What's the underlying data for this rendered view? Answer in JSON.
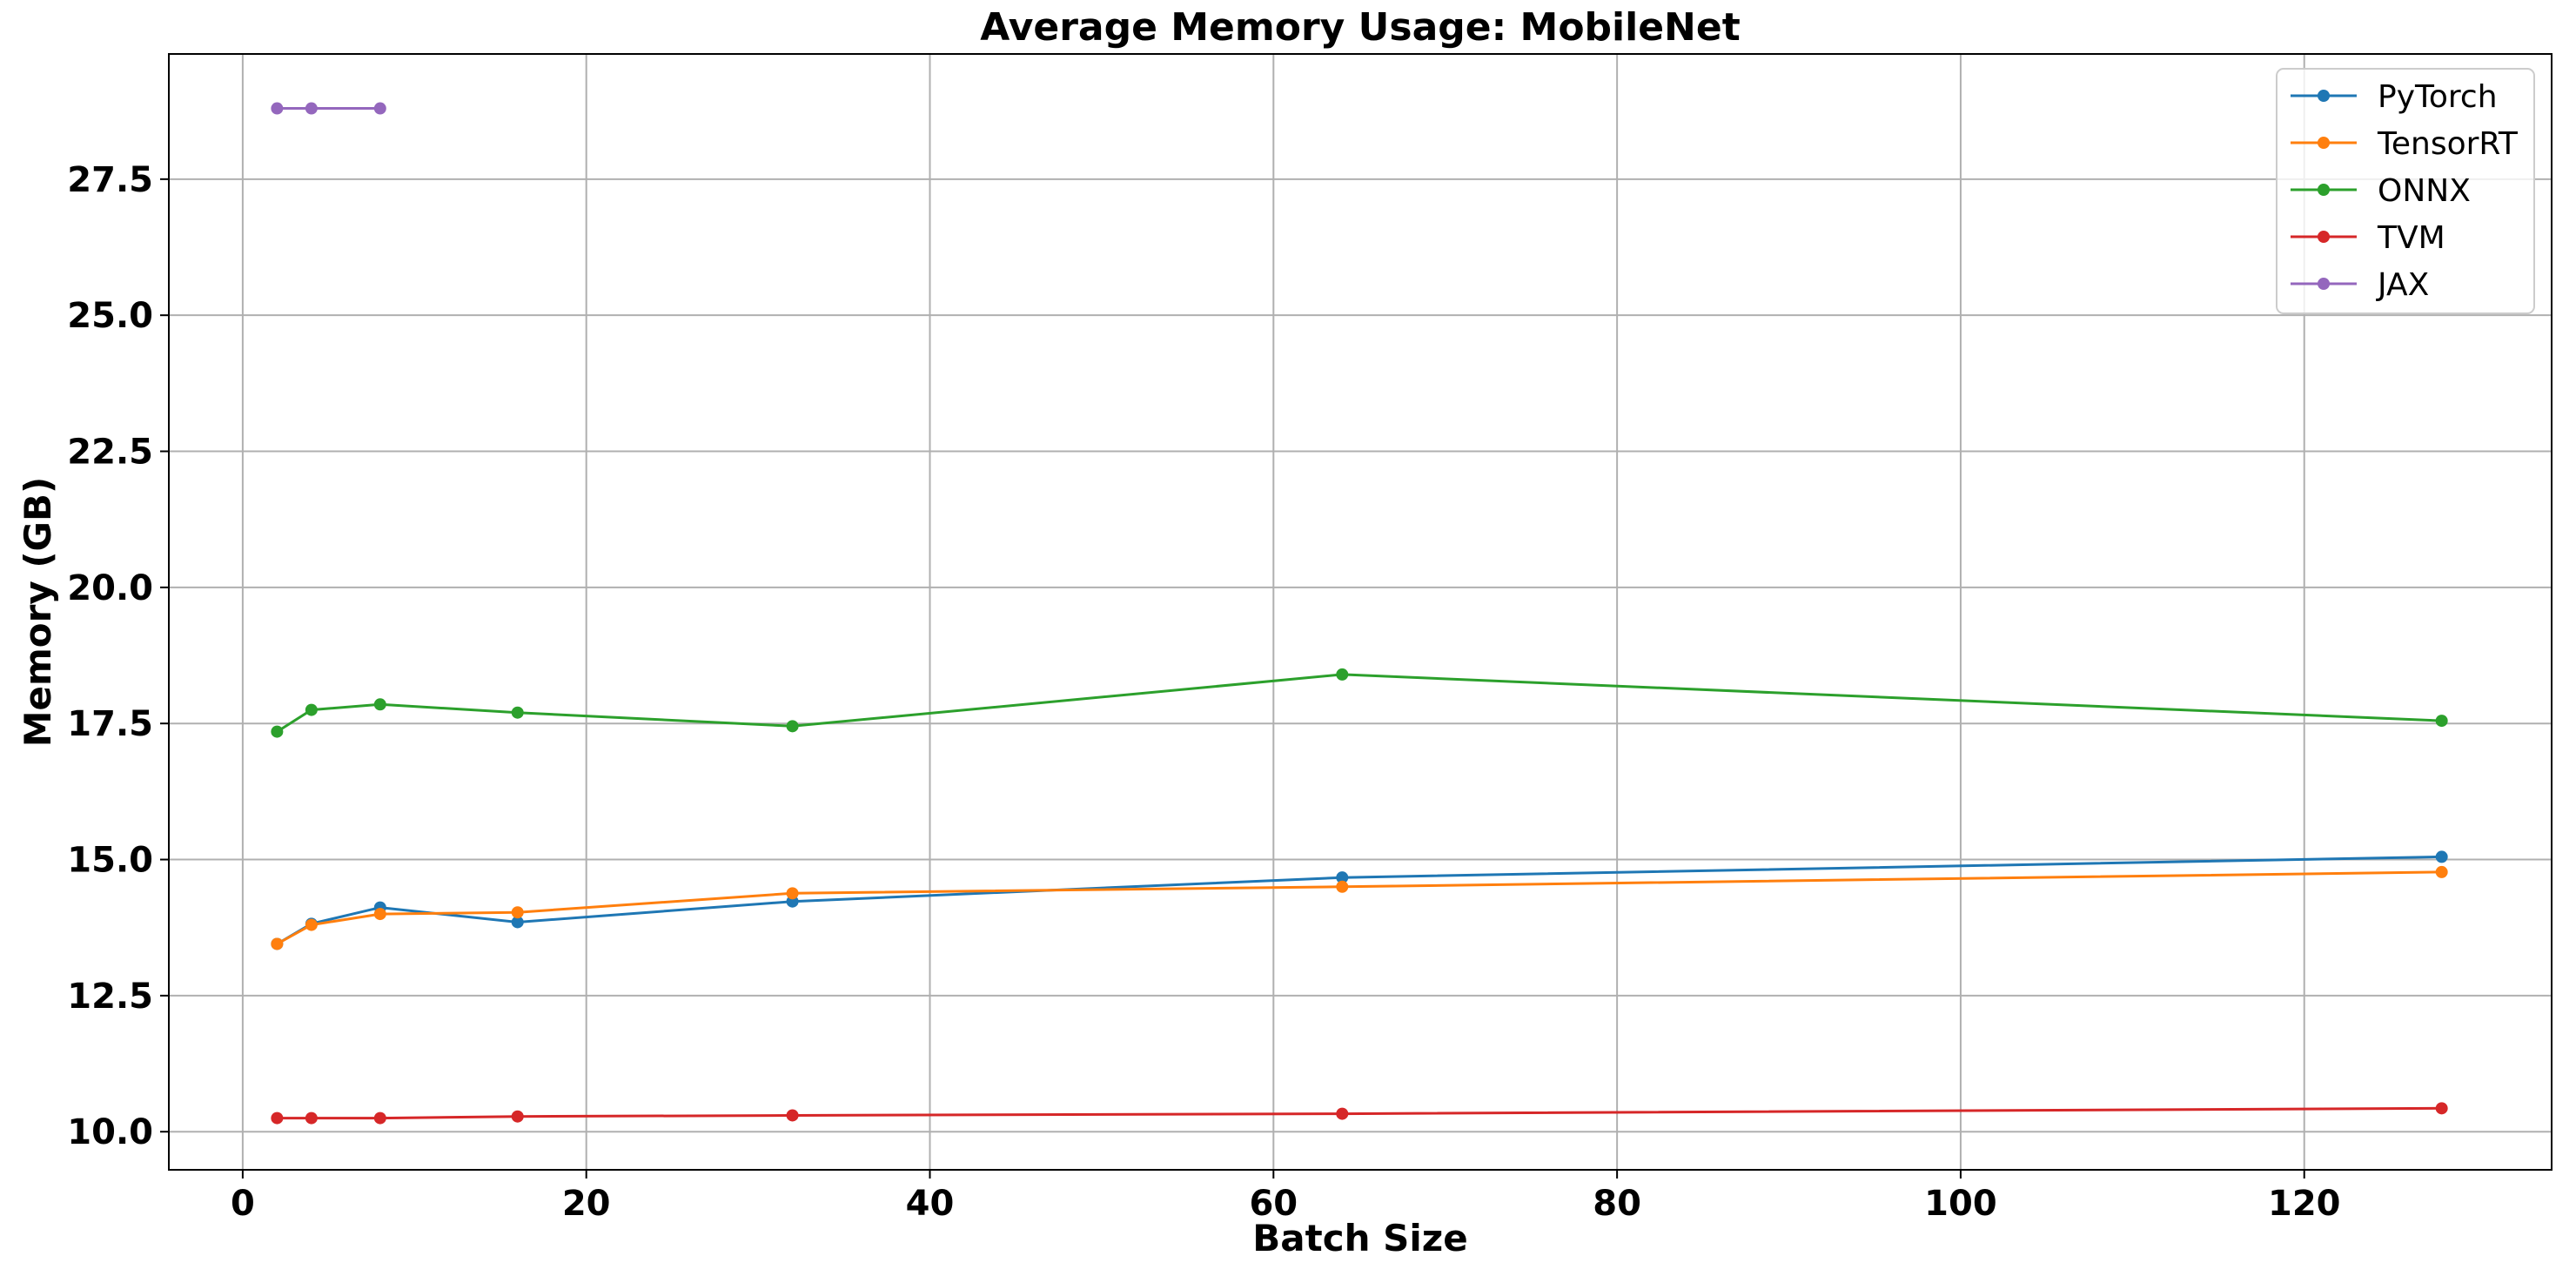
{
  "chart_data": {
    "type": "line",
    "title": "Average Memory Usage: MobileNet",
    "xlabel": "Batch Size",
    "ylabel": "Memory (GB)",
    "xlim": [
      -4.3,
      134.4
    ],
    "ylim": [
      9.3,
      29.8
    ],
    "xticks": [
      0,
      20,
      40,
      60,
      80,
      100,
      120
    ],
    "xtick_labels": [
      "0",
      "20",
      "40",
      "60",
      "80",
      "100",
      "120"
    ],
    "yticks": [
      10.0,
      12.5,
      15.0,
      17.5,
      20.0,
      22.5,
      25.0,
      27.5
    ],
    "ytick_labels": [
      "10.0",
      "12.5",
      "15.0",
      "17.5",
      "20.0",
      "22.5",
      "25.0",
      "27.5"
    ],
    "grid": true,
    "legend_position": "top-right",
    "series": [
      {
        "name": "PyTorch",
        "color": "#1f77b4",
        "x": [
          2,
          4,
          8,
          16,
          32,
          64,
          128
        ],
        "y": [
          13.45,
          13.82,
          14.12,
          13.85,
          14.23,
          14.67,
          15.05
        ]
      },
      {
        "name": "TensorRT",
        "color": "#ff7f0e",
        "x": [
          2,
          4,
          8,
          16,
          32,
          64,
          128
        ],
        "y": [
          13.45,
          13.8,
          14.0,
          14.03,
          14.38,
          14.5,
          14.77
        ]
      },
      {
        "name": "ONNX",
        "color": "#2ca02c",
        "x": [
          2,
          4,
          8,
          16,
          32,
          64,
          128
        ],
        "y": [
          17.35,
          17.75,
          17.85,
          17.7,
          17.45,
          18.4,
          17.55
        ]
      },
      {
        "name": "TVM",
        "color": "#d62728",
        "x": [
          2,
          4,
          8,
          16,
          32,
          64,
          128
        ],
        "y": [
          10.25,
          10.25,
          10.25,
          10.28,
          10.3,
          10.33,
          10.43
        ]
      },
      {
        "name": "JAX",
        "color": "#9467bd",
        "x": [
          2,
          4,
          8
        ],
        "y": [
          28.8,
          28.8,
          28.8
        ]
      }
    ]
  }
}
